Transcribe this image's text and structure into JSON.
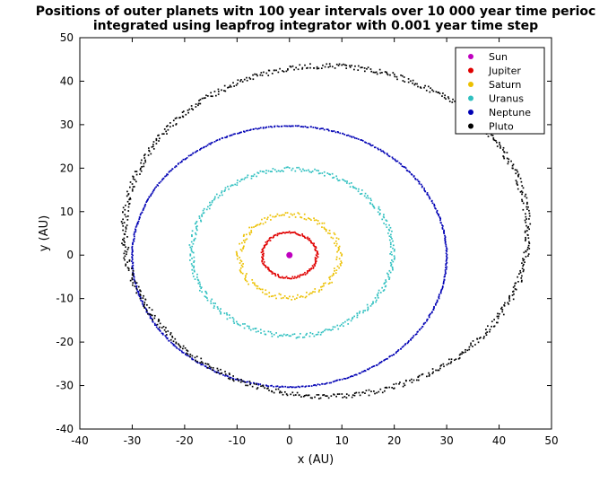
{
  "chart_data": {
    "type": "scatter",
    "title_lines": [
      "Positions of outer planets witn 100 year intervals over 10 000 year time perioc",
      "integrated using leapfrog integrator with 0.001 year time step"
    ],
    "xlabel": "x (AU)",
    "ylabel": "y (AU)",
    "xlim": [
      -40,
      50
    ],
    "ylim": [
      -40,
      50
    ],
    "xticks": [
      -40,
      -30,
      -20,
      -10,
      0,
      10,
      20,
      30,
      40,
      50
    ],
    "yticks": [
      -40,
      -30,
      -20,
      -10,
      0,
      10,
      20,
      30,
      40,
      50
    ],
    "grid": false,
    "legend_position": "top-right",
    "series": [
      {
        "name": "Sun",
        "color": "#bf00bf",
        "shape": "point",
        "center": [
          0,
          0
        ]
      },
      {
        "name": "Jupiter",
        "color": "#e00000",
        "shape": "ellipse",
        "center": [
          0,
          0
        ],
        "a": 5.2,
        "b": 5.2,
        "spread": 0.25
      },
      {
        "name": "Saturn",
        "color": "#ecc000",
        "shape": "ellipse",
        "center": [
          0,
          -0.2
        ],
        "a": 9.6,
        "b": 9.5,
        "spread": 0.6
      },
      {
        "name": "Uranus",
        "color": "#30c0c0",
        "shape": "ellipse",
        "center": [
          0.5,
          0.6
        ],
        "a": 19.2,
        "b": 19.2,
        "spread": 0.5
      },
      {
        "name": "Neptune",
        "color": "#0000b4",
        "shape": "ellipse",
        "center": [
          0,
          -0.3
        ],
        "a": 30.0,
        "b": 30.0,
        "spread": 0.12
      },
      {
        "name": "Pluto",
        "color": "#000000",
        "shape": "ellipse",
        "center": [
          7,
          5.5
        ],
        "a": 38.5,
        "b": 38.0,
        "spread": 0.6
      }
    ]
  }
}
